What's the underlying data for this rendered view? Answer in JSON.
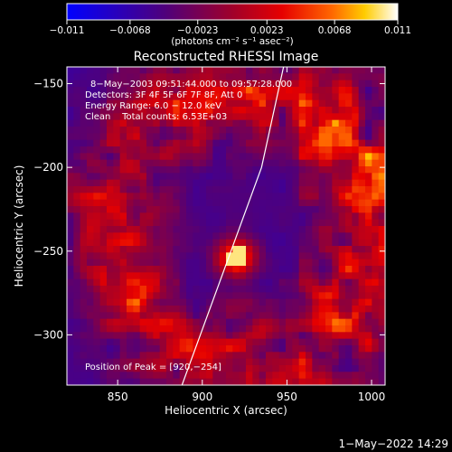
{
  "chart_data": {
    "type": "heatmap",
    "title": "Reconstructed RHESSI Image",
    "xlabel": "Heliocentric X (arcsec)",
    "ylabel": "Heliocentric Y (arcsec)",
    "xlim": [
      820,
      1008
    ],
    "ylim": [
      -330,
      -140
    ],
    "x_ticks": [
      850,
      900,
      950,
      1000
    ],
    "y_ticks": [
      -150,
      -200,
      -250,
      -300
    ],
    "x_tick_labels": [
      "850",
      "900",
      "950",
      "1000"
    ],
    "y_tick_labels": [
      "−150",
      "−200",
      "−250",
      "−300"
    ],
    "colorbar": {
      "range": [
        -0.011,
        0.011
      ],
      "ticks": [
        -0.011,
        -0.0068,
        -0.0023,
        0.0023,
        0.0068,
        0.011
      ],
      "tick_labels": [
        "−0.011",
        "−0.0068",
        "−0.0023",
        "0.0023",
        "0.0068",
        "0.011"
      ],
      "units_label": "(photons cm⁻² s⁻¹ asec⁻²)"
    },
    "info_lines": [
      "8−May−2003 09:51:44.000 to 09:57:28.000",
      "Detectors: 3F 4F 5F 6F 7F 8F, Att 0",
      "Energy Range: 6.0 − 12.0 keV",
      "Clean    Total counts: 6.53E+03"
    ],
    "peak_label": "Position of Peak = [920,−254]",
    "peak": [
      920,
      -254
    ],
    "limb_line": [
      [
        888,
        -330
      ],
      [
        935,
        -200
      ],
      [
        948,
        -140
      ]
    ],
    "grid": false
  },
  "date_stamp": "1−May−2022 14:29",
  "colors": {
    "background": "#000000",
    "text": "#ffffff",
    "palette": [
      "#0000ff",
      "#50007a",
      "#a0002a",
      "#e60000",
      "#ff6600",
      "#ffcc00",
      "#ffffff"
    ]
  }
}
